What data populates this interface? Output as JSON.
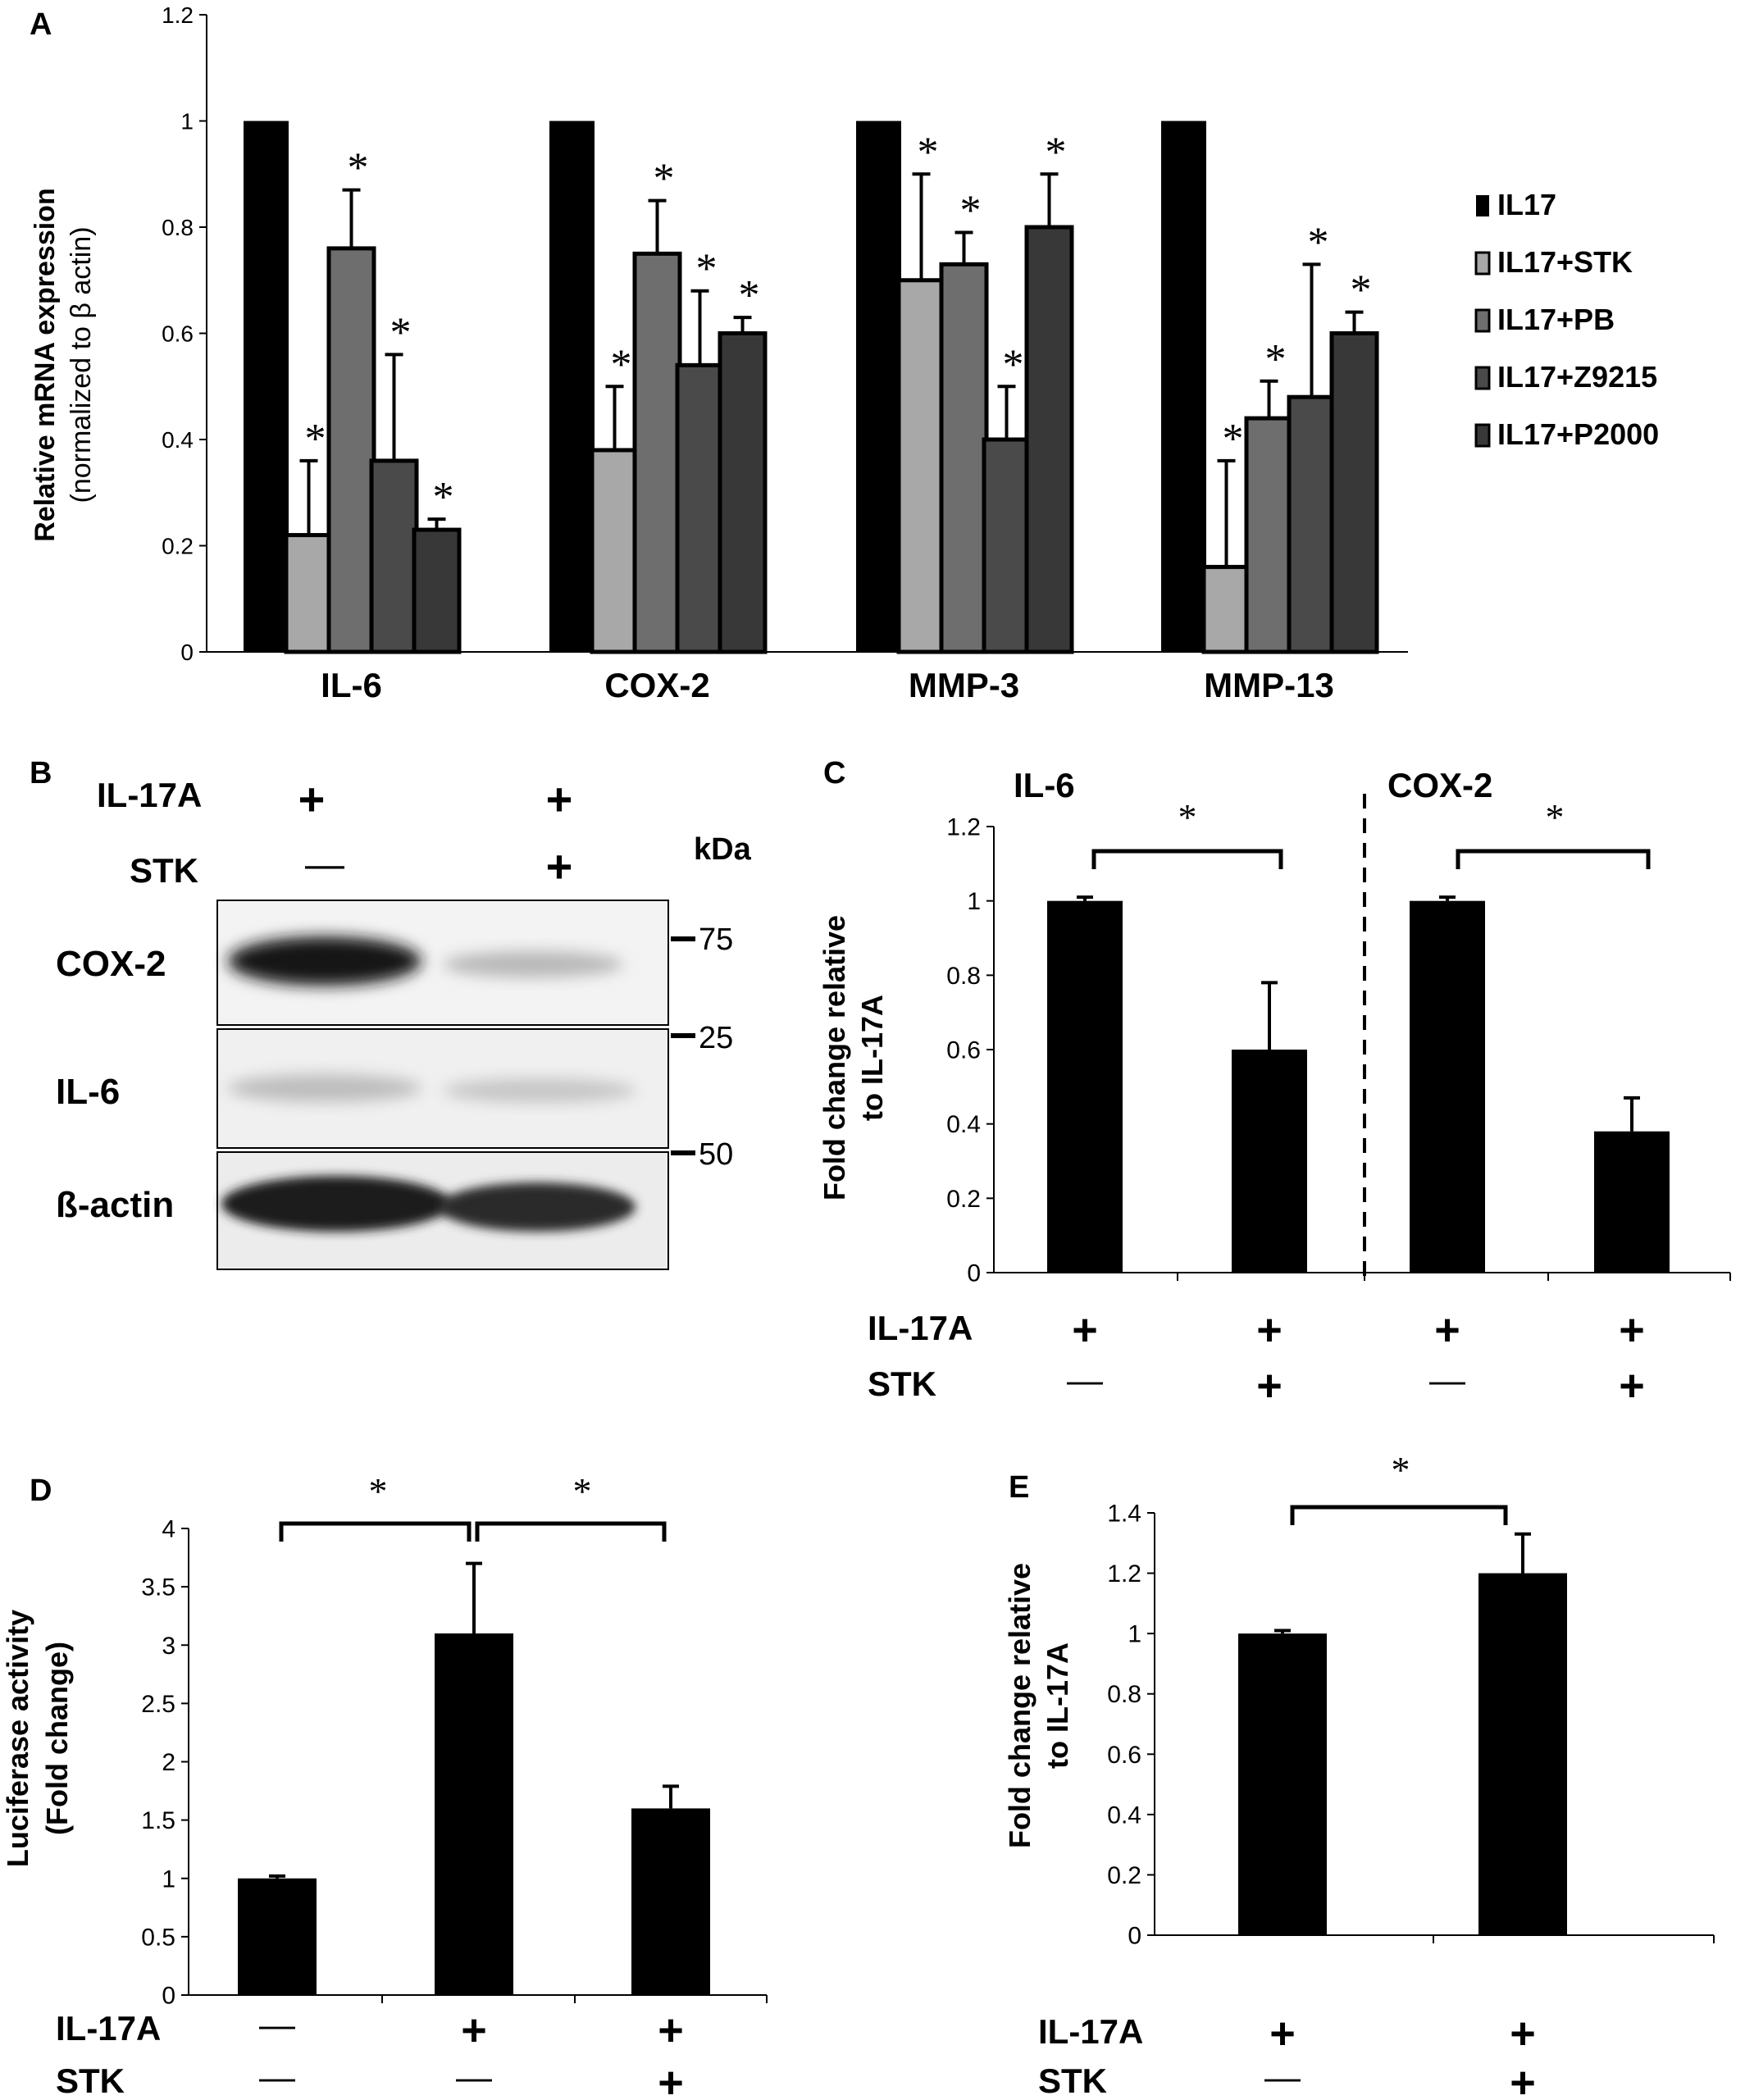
{
  "panels": {
    "a": {
      "letter": "A"
    },
    "b": {
      "letter": "B"
    },
    "c": {
      "letter": "C"
    },
    "d": {
      "letter": "D"
    },
    "e": {
      "letter": "E"
    }
  },
  "chart_data": [
    {
      "panel": "A",
      "type": "bar",
      "ylabel_line1": "Relative mRNA expression",
      "ylabel_line2": "(normalized to β actin)",
      "ylim": [
        0,
        1.2
      ],
      "yticks": [
        "0",
        "0.2",
        "0.4",
        "0.6",
        "0.8",
        "1",
        "1.2"
      ],
      "categories": [
        "IL-6",
        "COX-2",
        "MMP-3",
        "MMP-13"
      ],
      "legend_position": "right",
      "series": [
        {
          "name": "IL17",
          "color": "#000000",
          "values": [
            1,
            1,
            1,
            1
          ],
          "errors": [
            0,
            0,
            0,
            0
          ],
          "star": [
            false,
            false,
            false,
            false
          ]
        },
        {
          "name": "IL17+STK",
          "color": "#a8a8a8",
          "values": [
            0.22,
            0.38,
            0.7,
            0.16
          ],
          "errors": [
            0.14,
            0.12,
            0.2,
            0.2
          ],
          "star": [
            true,
            true,
            true,
            true
          ]
        },
        {
          "name": "IL17+PB",
          "color": "#6e6e6e",
          "values": [
            0.76,
            0.75,
            0.73,
            0.44
          ],
          "errors": [
            0.11,
            0.1,
            0.06,
            0.07
          ],
          "star": [
            true,
            true,
            true,
            true
          ]
        },
        {
          "name": "IL17+Z9215",
          "color": "#4a4a4a",
          "values": [
            0.36,
            0.54,
            0.4,
            0.48
          ],
          "errors": [
            0.2,
            0.14,
            0.1,
            0.25
          ],
          "star": [
            true,
            true,
            true,
            true
          ]
        },
        {
          "name": "IL17+P2000",
          "color": "#383838",
          "values": [
            0.23,
            0.6,
            0.8,
            0.6
          ],
          "errors": [
            0.02,
            0.03,
            0.1,
            0.04
          ],
          "star": [
            true,
            true,
            true,
            true
          ]
        }
      ],
      "star_symbol": "*"
    },
    {
      "panel": "C",
      "type": "bar",
      "ylabel_line1": "Fold change  relative",
      "ylabel_line2": "to IL-17A",
      "ylim": [
        0,
        1.2
      ],
      "yticks": [
        "0",
        "0.2",
        "0.4",
        "0.6",
        "0.8",
        "1",
        "1.2"
      ],
      "groups": [
        "IL-6",
        "COX-2"
      ],
      "values": [
        1.0,
        0.6,
        1.0,
        0.38
      ],
      "errors": [
        0.01,
        0.18,
        0.01,
        0.09
      ],
      "significance": "*",
      "row_labels": [
        "IL-17A",
        "STK"
      ],
      "conditions": [
        [
          "+",
          "—"
        ],
        [
          "+",
          "+"
        ],
        [
          "+",
          "—"
        ],
        [
          "+",
          "+"
        ]
      ]
    },
    {
      "panel": "D",
      "type": "bar",
      "ylabel_line1": "Luciferase activity",
      "ylabel_line2": "(Fold change)",
      "ylim": [
        0,
        4
      ],
      "yticks": [
        "0",
        "0.5",
        "1",
        "1.5",
        "2",
        "2.5",
        "3",
        "3.5",
        "4"
      ],
      "values": [
        1.0,
        3.1,
        1.6
      ],
      "errors": [
        0.02,
        0.6,
        0.19
      ],
      "significance": "*",
      "row_labels": [
        "IL-17A",
        "STK"
      ],
      "conditions": [
        [
          "—",
          "—"
        ],
        [
          "+",
          "—"
        ],
        [
          "+",
          "+"
        ]
      ]
    },
    {
      "panel": "E",
      "type": "bar",
      "ylabel_line1": "Fold change  relative",
      "ylabel_line2": "to IL-17A",
      "ylim": [
        0,
        1.4
      ],
      "yticks": [
        "0",
        "0.2",
        "0.4",
        "0.6",
        "0.8",
        "1",
        "1.2",
        "1.4"
      ],
      "values": [
        1.0,
        1.2
      ],
      "errors": [
        0.01,
        0.13
      ],
      "significance": "*",
      "row_labels": [
        "IL-17A",
        "STK"
      ],
      "conditions": [
        [
          "+",
          "—"
        ],
        [
          "+",
          "+"
        ]
      ]
    }
  ],
  "blot": {
    "header_rows": [
      {
        "label": "IL-17A",
        "lane1": "+",
        "lane2": "+"
      },
      {
        "label": "STK",
        "lane1": "—",
        "lane2": "+"
      }
    ],
    "kda_label": "kDa",
    "bands": [
      {
        "label": "COX-2",
        "marker": "75"
      },
      {
        "label": "IL-6",
        "marker": "25"
      },
      {
        "label": "ß-actin",
        "marker": "50"
      }
    ]
  }
}
